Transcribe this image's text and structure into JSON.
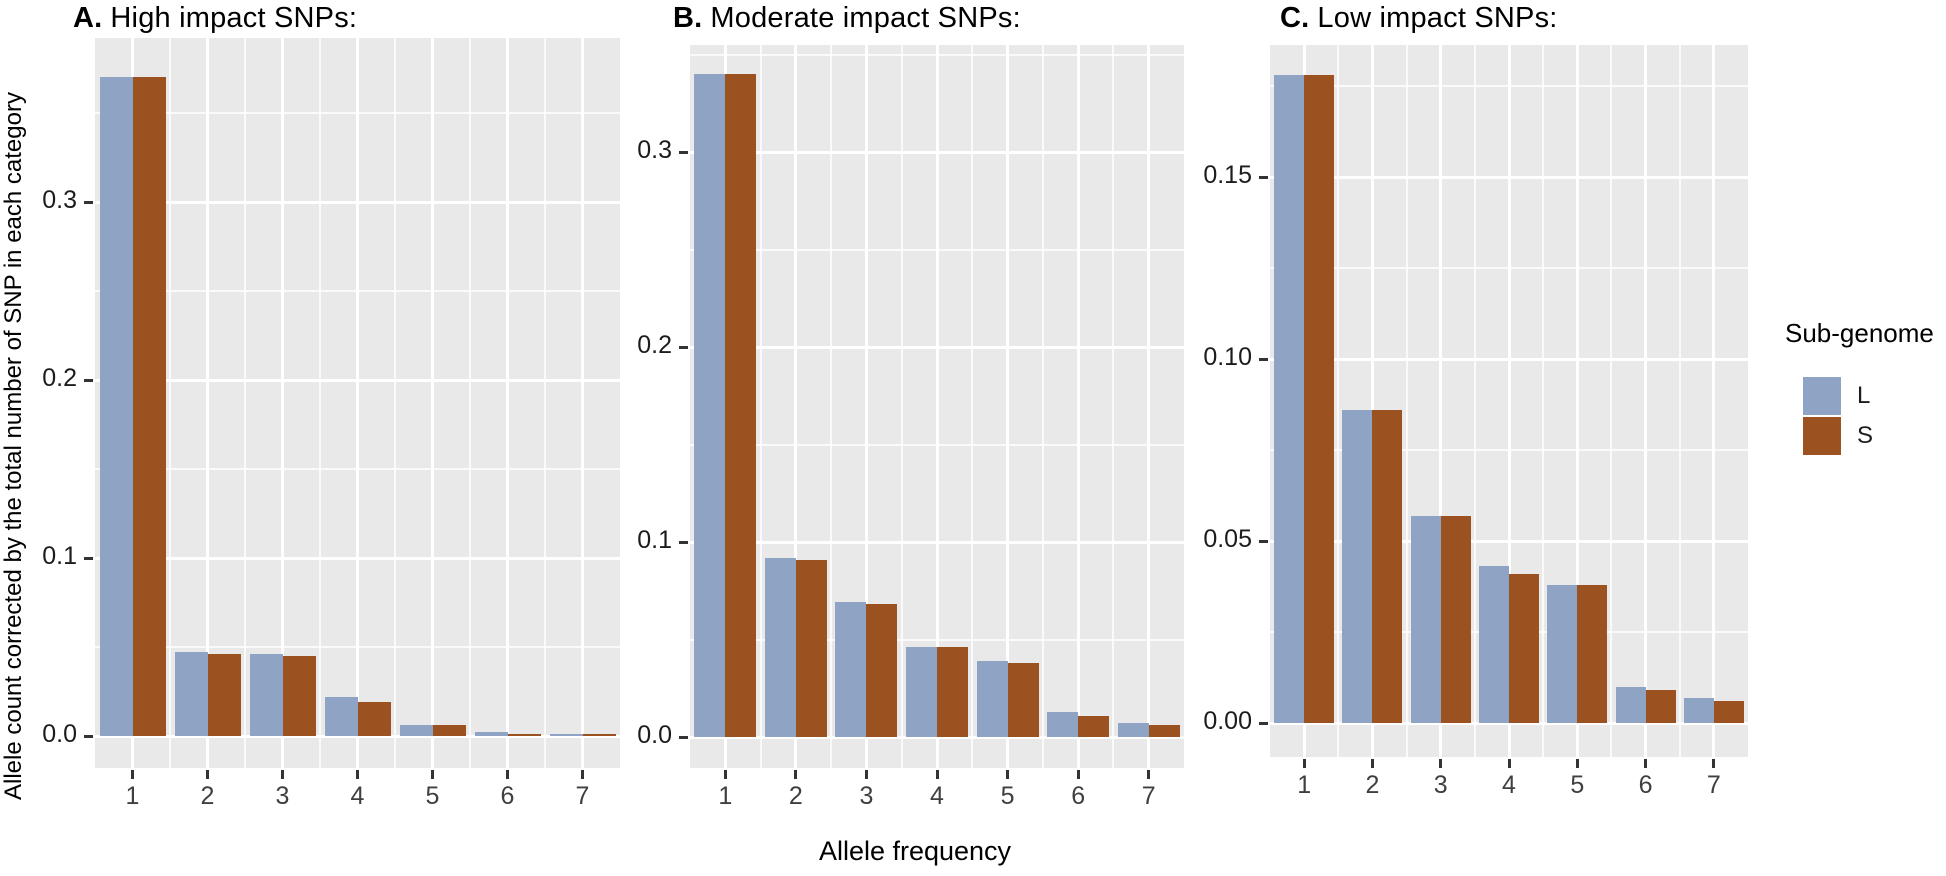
{
  "figure": {
    "y_axis_label": "Allele count corrected by the total number of SNP in each category",
    "x_axis_label": "Allele frequency",
    "legend": {
      "title": "Sub-genome",
      "entries": [
        {
          "label": "L",
          "color": "#8FA3C4"
        },
        {
          "label": "S",
          "color": "#9C5120"
        }
      ]
    }
  },
  "chart_data": {
    "type": "bar",
    "categories": [
      "1",
      "2",
      "3",
      "4",
      "5",
      "6",
      "7"
    ],
    "xlabel": "Allele frequency",
    "ylabel": "Allele count corrected by the total number of SNP in each category",
    "grid": "on",
    "legend_position": "right",
    "legend_title": "Sub-genome",
    "palette": {
      "L": "#8FA3C4",
      "S": "#9C5120",
      "panel_background": "#E9E9E9",
      "gridline": "#FFFFFF"
    },
    "panels": [
      {
        "id": "A",
        "label": "A.",
        "title": "High impact SNPs:",
        "ylim": [
          0,
          0.392
        ],
        "yticks": [
          0,
          0.1,
          0.2,
          0.3
        ],
        "ytick_labels": [
          "0.0",
          "0.1",
          "0.2",
          "0.3"
        ],
        "series": [
          {
            "name": "L",
            "values": [
              0.37,
              0.047,
              0.046,
              0.022,
              0.006,
              0.002,
              0.001
            ]
          },
          {
            "name": "S",
            "values": [
              0.37,
              0.046,
              0.045,
              0.019,
              0.006,
              0.001,
              0.001
            ]
          }
        ]
      },
      {
        "id": "B",
        "label": "B.",
        "title": "Moderate impact SNPs:",
        "ylim": [
          0,
          0.355
        ],
        "yticks": [
          0,
          0.1,
          0.2,
          0.3
        ],
        "ytick_labels": [
          "0.0",
          "0.1",
          "0.2",
          "0.3"
        ],
        "series": [
          {
            "name": "L",
            "values": [
              0.34,
              0.092,
              0.069,
              0.046,
              0.039,
              0.013,
              0.007
            ]
          },
          {
            "name": "S",
            "values": [
              0.34,
              0.091,
              0.068,
              0.046,
              0.038,
              0.011,
              0.006
            ]
          }
        ]
      },
      {
        "id": "C",
        "label": "C.",
        "title": "Low impact SNPs:",
        "ylim": [
          0,
          0.186
        ],
        "yticks": [
          0,
          0.05,
          0.1,
          0.15
        ],
        "ytick_labels": [
          "0.00",
          "0.05",
          "0.10",
          "0.15"
        ],
        "series": [
          {
            "name": "L",
            "values": [
              0.178,
              0.086,
              0.057,
              0.043,
              0.038,
              0.01,
              0.007
            ]
          },
          {
            "name": "S",
            "values": [
              0.178,
              0.086,
              0.057,
              0.041,
              0.038,
              0.009,
              0.006
            ]
          }
        ]
      }
    ]
  }
}
